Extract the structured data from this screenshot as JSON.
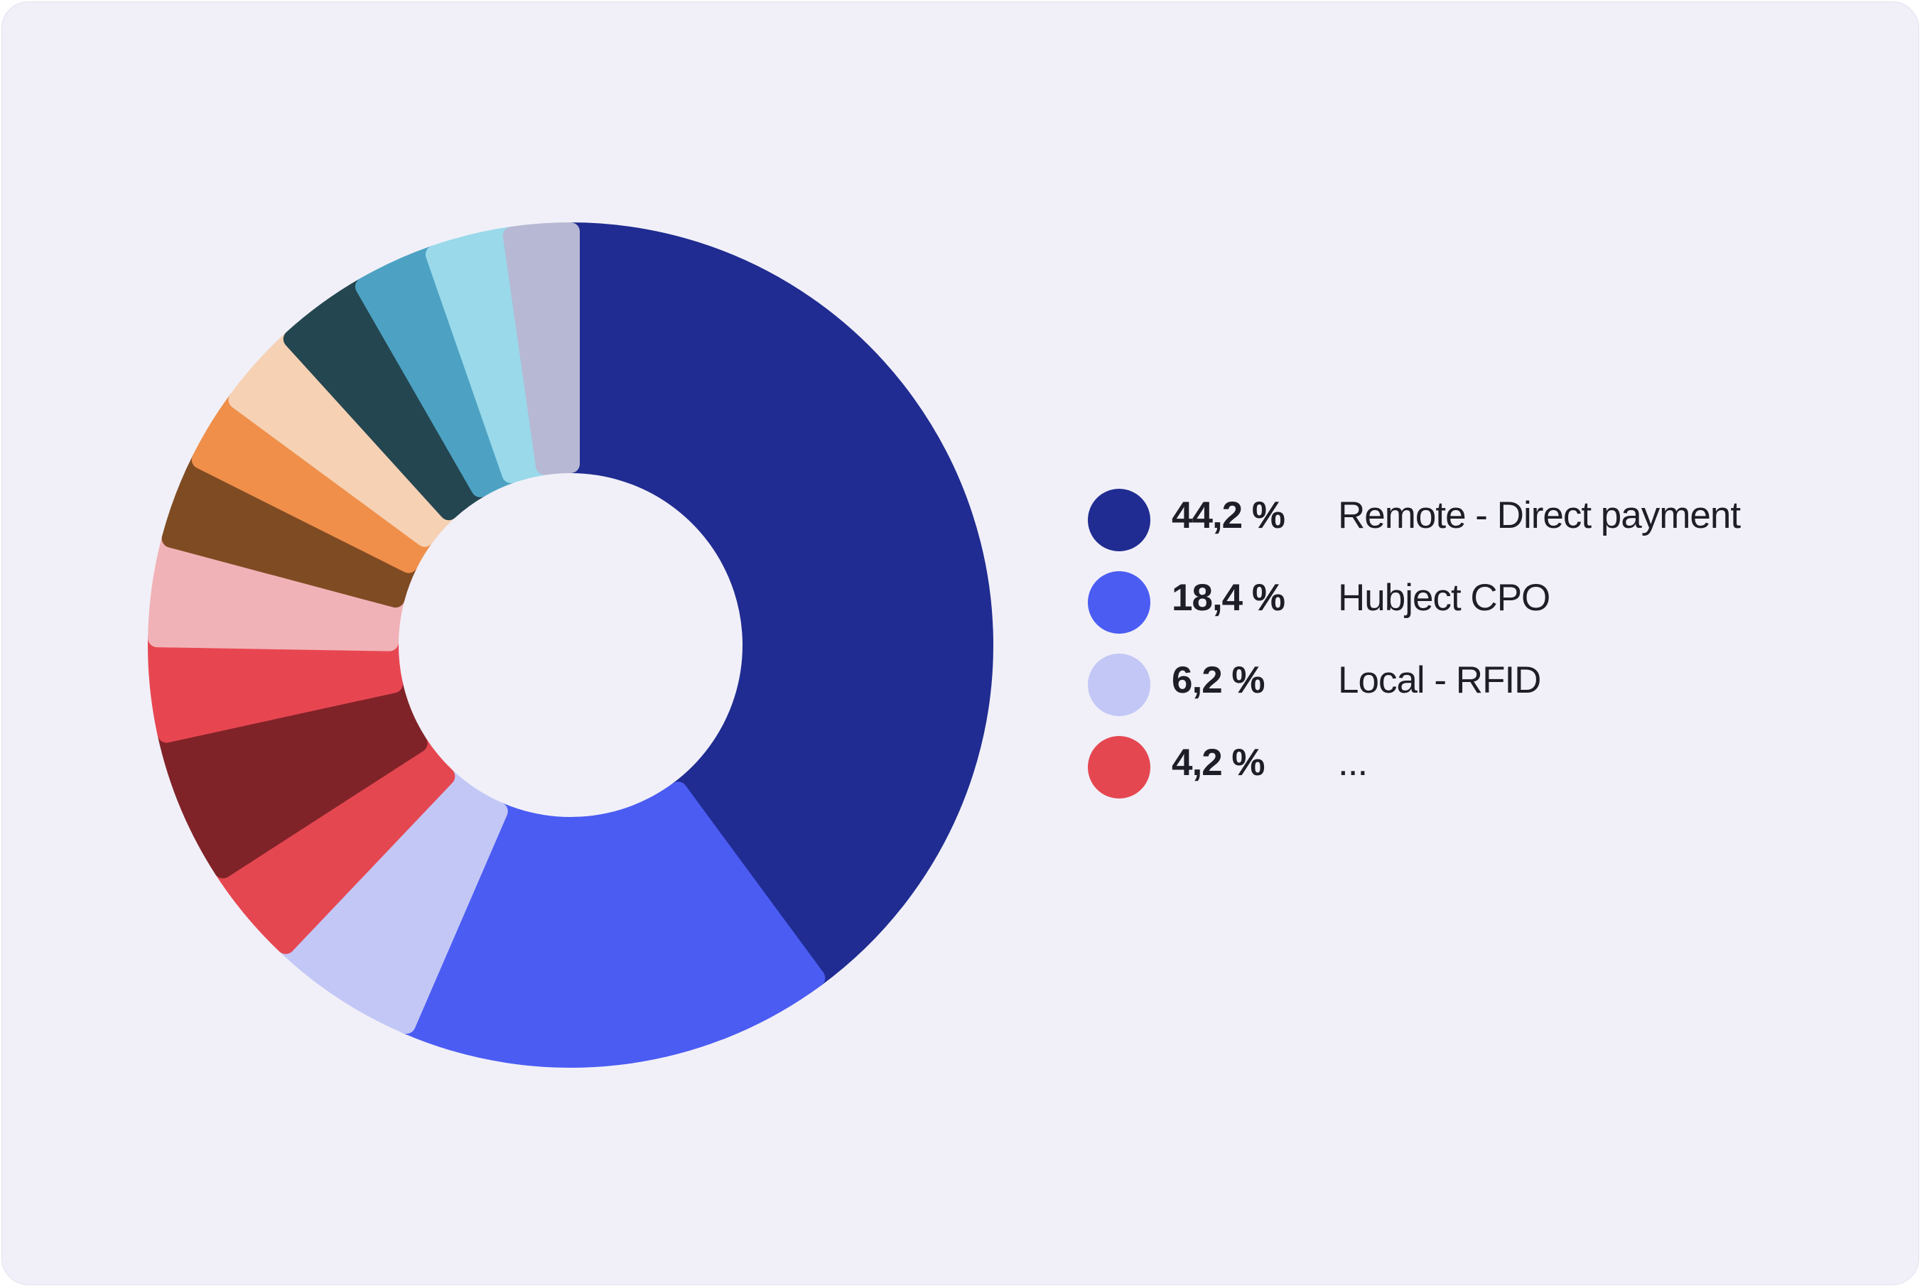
{
  "colors": {
    "background": "#f1f0f8",
    "card_border": "#e3e2ee",
    "text": "#1e1e28"
  },
  "chart_data": {
    "type": "pie",
    "variant": "donut",
    "grid": false,
    "legend_position": "right",
    "slices": [
      {
        "label": "Remote - Direct payment",
        "value": 44.2,
        "value_text": "44,2 %",
        "color": "#202c91"
      },
      {
        "label": "Hubject CPO",
        "value": 18.4,
        "value_text": "18,4 %",
        "color": "#4b5cf3"
      },
      {
        "label": "Local - RFID",
        "value": 6.2,
        "value_text": "6,2 %",
        "color": "#c3c7f6"
      },
      {
        "label": "...",
        "value": 4.2,
        "value_text": "4,2 %",
        "color": "#e54751"
      },
      {
        "value": 6.3,
        "color": "#802328"
      },
      {
        "value": 4.1,
        "color": "#e74651"
      },
      {
        "value": 4.3,
        "color": "#f1b2b7"
      },
      {
        "value": 3.6,
        "color": "#7f4b23"
      },
      {
        "value": 3.0,
        "color": "#ef8f4a"
      },
      {
        "value": 3.5,
        "color": "#f6d1b4"
      },
      {
        "value": 3.8,
        "color": "#244650"
      },
      {
        "value": 3.3,
        "color": "#4da2c3"
      },
      {
        "value": 3.4,
        "color": "#99d9ea"
      },
      {
        "value": 2.5,
        "color": "#b7b8d3"
      }
    ]
  },
  "legend": {
    "items": [
      {
        "value": "44,2 %",
        "label": "Remote - Direct payment",
        "color": "#202c91"
      },
      {
        "value": "18,4 %",
        "label": "Hubject CPO",
        "color": "#4b5cf3"
      },
      {
        "value": "6,2 %",
        "label": "Local - RFID",
        "color": "#c3c7f6"
      },
      {
        "value": "4,2 %",
        "label": "...",
        "color": "#e54751"
      }
    ]
  }
}
